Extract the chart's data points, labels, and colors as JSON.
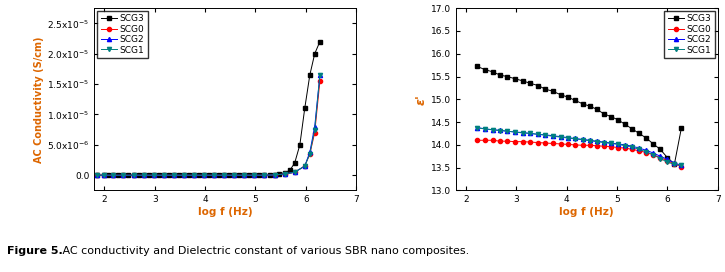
{
  "xlabel": "log f (Hz)",
  "left_ylabel": "AC Conductivity (S/cm)",
  "right_ylabel": "ε'",
  "left_xlim": [
    1.8,
    7.0
  ],
  "left_ylim": [
    -2.5e-06,
    2.75e-05
  ],
  "right_xlim": [
    1.8,
    7.0
  ],
  "right_ylim": [
    13.0,
    17.0
  ],
  "left_yticks": [
    0.0,
    5e-06,
    1e-05,
    1.5e-05,
    2e-05,
    2.5e-05
  ],
  "right_yticks": [
    13.0,
    13.5,
    14.0,
    14.5,
    15.0,
    15.5,
    16.0,
    16.5,
    17.0
  ],
  "xticks": [
    2,
    3,
    4,
    5,
    6,
    7
  ],
  "legend_labels": [
    "SCG3",
    "SCG0",
    "SCG2",
    "SCG1"
  ],
  "colors": [
    "black",
    "red",
    "blue",
    "teal"
  ],
  "markers": [
    "s",
    "o",
    "^",
    "v"
  ],
  "figure_caption_bold": "Figure 5.",
  "figure_caption_rest": " AC conductivity and Dielectric constant of various SBR nano composites.",
  "left_scg3_x": [
    1.845,
    2.0,
    2.08,
    2.176,
    2.279,
    2.38,
    2.477,
    2.58,
    2.681,
    2.778,
    2.881,
    2.978,
    3.079,
    3.176,
    3.279,
    3.38,
    3.477,
    3.58,
    3.681,
    3.778,
    3.881,
    3.978,
    4.079,
    4.176,
    4.279,
    4.38,
    4.477,
    4.58,
    4.681,
    4.778,
    4.881,
    4.978,
    5.079,
    5.176,
    5.279,
    5.38,
    5.477,
    5.58,
    5.681,
    5.778,
    5.881,
    5.978,
    6.079,
    6.176,
    6.279
  ],
  "left_scg3_y": [
    0.0,
    0.0,
    0.0,
    0.0,
    0.0,
    0.0,
    0.0,
    0.0,
    0.0,
    0.0,
    0.0,
    0.0,
    0.0,
    0.0,
    0.0,
    0.0,
    0.0,
    0.0,
    0.0,
    0.0,
    0.0,
    0.0,
    0.0,
    0.0,
    0.0,
    0.0,
    0.0,
    0.0,
    0.0,
    0.0,
    0.0,
    0.0,
    0.0,
    0.0,
    0.0,
    1e-07,
    2e-07,
    4e-07,
    8e-07,
    2e-06,
    5e-06,
    1.1e-05,
    1.65e-05,
    2e-05,
    2.2e-05
  ],
  "left_scg0_x": [
    1.845,
    2.0,
    2.176,
    2.38,
    2.58,
    2.778,
    2.978,
    3.176,
    3.38,
    3.58,
    3.778,
    3.978,
    4.176,
    4.38,
    4.58,
    4.778,
    4.978,
    5.176,
    5.38,
    5.58,
    5.778,
    5.978,
    6.079,
    6.176,
    6.279
  ],
  "left_scg0_y": [
    0.0,
    0.0,
    0.0,
    0.0,
    0.0,
    0.0,
    0.0,
    0.0,
    0.0,
    0.0,
    0.0,
    0.0,
    0.0,
    0.0,
    0.0,
    0.0,
    0.0,
    0.0,
    5e-08,
    2e-07,
    5e-07,
    1.5e-06,
    3.5e-06,
    7e-06,
    1.55e-05
  ],
  "left_scg2_x": [
    1.845,
    2.0,
    2.176,
    2.38,
    2.58,
    2.778,
    2.978,
    3.176,
    3.38,
    3.58,
    3.778,
    3.978,
    4.176,
    4.38,
    4.58,
    4.778,
    4.978,
    5.176,
    5.38,
    5.58,
    5.778,
    5.978,
    6.079,
    6.176,
    6.279
  ],
  "left_scg2_y": [
    0.0,
    0.0,
    0.0,
    0.0,
    0.0,
    0.0,
    0.0,
    0.0,
    0.0,
    0.0,
    0.0,
    0.0,
    0.0,
    0.0,
    0.0,
    0.0,
    0.0,
    0.0,
    5e-08,
    2e-07,
    5e-07,
    1.5e-06,
    3.8e-06,
    8e-06,
    1.65e-05
  ],
  "left_scg1_x": [
    1.845,
    2.0,
    2.176,
    2.38,
    2.58,
    2.778,
    2.978,
    3.176,
    3.38,
    3.58,
    3.778,
    3.978,
    4.176,
    4.38,
    4.58,
    4.778,
    4.978,
    5.176,
    5.38,
    5.58,
    5.778,
    5.978,
    6.079,
    6.176,
    6.279
  ],
  "left_scg1_y": [
    0.0,
    0.0,
    0.0,
    0.0,
    0.0,
    0.0,
    0.0,
    0.0,
    0.0,
    0.0,
    0.0,
    0.0,
    0.0,
    0.0,
    0.0,
    0.0,
    0.0,
    0.0,
    5e-08,
    2e-07,
    5e-07,
    1.5e-06,
    3.5e-06,
    7.5e-06,
    1.65e-05
  ],
  "right_scg3_x": [
    2.23,
    2.38,
    2.54,
    2.68,
    2.82,
    2.98,
    3.14,
    3.28,
    3.44,
    3.58,
    3.72,
    3.88,
    4.02,
    4.16,
    4.32,
    4.46,
    4.6,
    4.74,
    4.88,
    5.02,
    5.16,
    5.3,
    5.44,
    5.58,
    5.72,
    5.86,
    6.0,
    6.14,
    6.28
  ],
  "right_scg3_y": [
    15.72,
    15.65,
    15.6,
    15.53,
    15.5,
    15.45,
    15.4,
    15.35,
    15.3,
    15.22,
    15.18,
    15.1,
    15.05,
    14.98,
    14.9,
    14.85,
    14.78,
    14.68,
    14.62,
    14.55,
    14.45,
    14.35,
    14.25,
    14.15,
    14.02,
    13.9,
    13.72,
    13.58,
    14.38
  ],
  "right_scg0_x": [
    2.23,
    2.38,
    2.54,
    2.68,
    2.82,
    2.98,
    3.14,
    3.28,
    3.44,
    3.58,
    3.72,
    3.88,
    4.02,
    4.16,
    4.32,
    4.46,
    4.6,
    4.74,
    4.88,
    5.02,
    5.16,
    5.3,
    5.44,
    5.58,
    5.72,
    5.86,
    6.0,
    6.14,
    6.28
  ],
  "right_scg0_y": [
    14.1,
    14.1,
    14.1,
    14.08,
    14.08,
    14.07,
    14.07,
    14.06,
    14.05,
    14.04,
    14.03,
    14.02,
    14.01,
    14.0,
    13.99,
    13.99,
    13.98,
    13.97,
    13.96,
    13.94,
    13.93,
    13.9,
    13.87,
    13.83,
    13.78,
    13.72,
    13.65,
    13.58,
    13.52
  ],
  "right_scg2_x": [
    2.23,
    2.38,
    2.54,
    2.68,
    2.82,
    2.98,
    3.14,
    3.28,
    3.44,
    3.58,
    3.72,
    3.88,
    4.02,
    4.16,
    4.32,
    4.46,
    4.6,
    4.74,
    4.88,
    5.02,
    5.16,
    5.3,
    5.44,
    5.58,
    5.72,
    5.86,
    6.0,
    6.14,
    6.28
  ],
  "right_scg2_y": [
    14.38,
    14.35,
    14.33,
    14.32,
    14.3,
    14.28,
    14.27,
    14.25,
    14.23,
    14.22,
    14.2,
    14.18,
    14.16,
    14.14,
    14.12,
    14.1,
    14.08,
    14.06,
    14.04,
    14.02,
    14.0,
    13.97,
    13.93,
    13.88,
    13.82,
    13.75,
    13.68,
    13.6,
    13.55
  ],
  "right_scg1_x": [
    2.23,
    2.38,
    2.54,
    2.68,
    2.82,
    2.98,
    3.14,
    3.28,
    3.44,
    3.58,
    3.72,
    3.88,
    4.02,
    4.16,
    4.32,
    4.46,
    4.6,
    4.74,
    4.88,
    5.02,
    5.16,
    5.3,
    5.44,
    5.58,
    5.72,
    5.86,
    6.0,
    6.14,
    6.28
  ],
  "right_scg1_y": [
    14.37,
    14.35,
    14.33,
    14.31,
    14.3,
    14.28,
    14.26,
    14.25,
    14.23,
    14.21,
    14.19,
    14.17,
    14.15,
    14.13,
    14.11,
    14.09,
    14.07,
    14.05,
    14.03,
    14.01,
    13.98,
    13.95,
    13.9,
    13.85,
    13.78,
    13.7,
    13.62,
    13.57,
    13.55
  ]
}
